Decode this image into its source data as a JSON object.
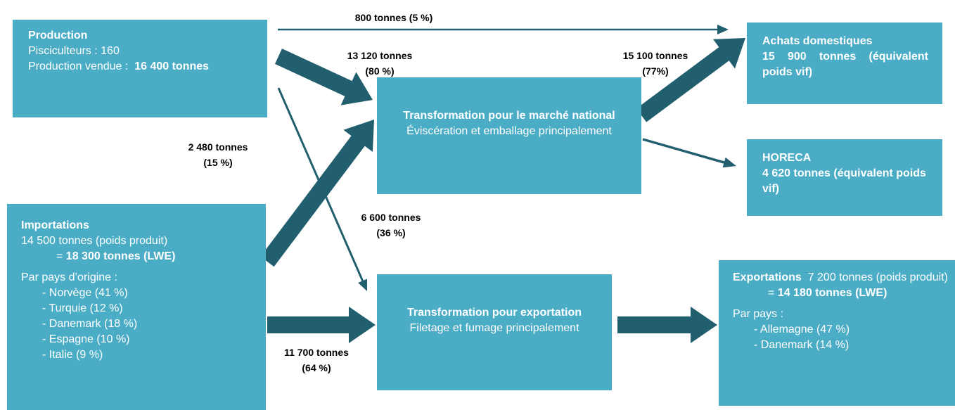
{
  "production": {
    "title": "Production",
    "line1": "Pisciculteurs : 160",
    "line2": "Production vendue :",
    "line2_bold": "16 400 tonnes"
  },
  "imports": {
    "title": "Importations",
    "line1": "14 500 tonnes (poids produit)",
    "eq": "=",
    "eq_bold": "18 300 tonnes (LWE)",
    "countries_title": "Par pays d’origine :",
    "countries": [
      "- Norvège (41 %)",
      "- Turquie (12 %)",
      "- Danemark (18 %)",
      "- Espagne (10 %)",
      "- Italie (9 %)"
    ]
  },
  "national": {
    "title": "Transformation pour le marché national",
    "subtitle": "Éviscération et emballage principalement"
  },
  "export_processing": {
    "title": "Transformation pour exportation",
    "subtitle": "Filetage et fumage principalement"
  },
  "domestic": {
    "title": "Achats domestiques",
    "value": "15 900 tonnes (équivalent poids vif)"
  },
  "horeca": {
    "title": "HORECA",
    "value": "4 620 tonnes (équivalent poids vif)"
  },
  "exports": {
    "title": "Exportations",
    "line1": "7 200 tonnes (poids produit)",
    "eq": "=",
    "eq_bold": "14 180 tonnes (LWE)",
    "countries_title": "Par pays :",
    "countries": [
      "- Allemagne (47 %)",
      "- Danemark (14 %)"
    ]
  },
  "flows": [
    {
      "amount": "800  tonnes (5 %)"
    },
    {
      "amount": "13 120 tonnes",
      "share": "(80 %)"
    },
    {
      "amount": "15 100 tonnes",
      "share": "(77%)"
    },
    {
      "amount": "2 480 tonnes",
      "share": "(15 %)"
    },
    {
      "amount": "6 600 tonnes",
      "share": "(36 %)"
    },
    {
      "amount": "11 700 tonnes",
      "share": "(64 %)"
    }
  ]
}
